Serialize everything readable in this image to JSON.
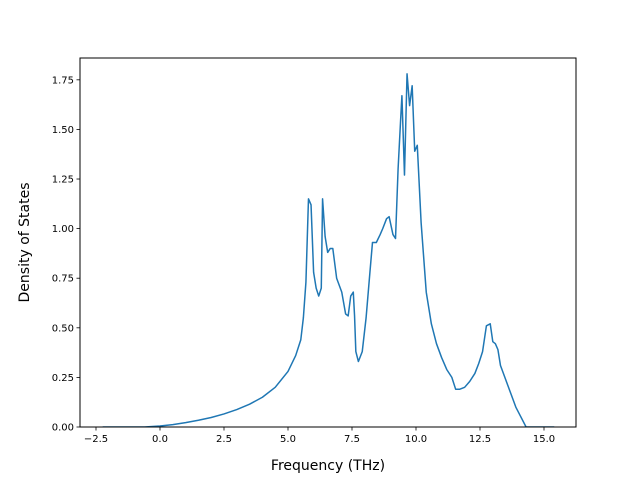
{
  "chart_data": {
    "type": "line",
    "title": "",
    "xlabel": "Frequency (THz)",
    "ylabel": "Density of States",
    "xlim": [
      -3.125,
      16.25
    ],
    "ylim": [
      0,
      1.86
    ],
    "grid": false,
    "legend": "none",
    "x_ticks": [
      -2.5,
      0.0,
      2.5,
      5.0,
      7.5,
      10.0,
      12.5,
      15.0
    ],
    "x_tick_labels": [
      "−2.5",
      "0.0",
      "2.5",
      "5.0",
      "7.5",
      "10.0",
      "12.5",
      "15.0"
    ],
    "y_ticks": [
      0,
      0.25,
      0.5,
      0.75,
      1.0,
      1.25,
      1.5,
      1.75
    ],
    "y_tick_labels": [
      "0.00",
      "0.25",
      "0.50",
      "0.75",
      "1.00",
      "1.25",
      "1.50",
      "1.75"
    ],
    "series": [
      {
        "color": "#1f77b4",
        "x": [
          -2.24,
          -0.6,
          0.0,
          0.5,
          1.0,
          1.5,
          2.0,
          2.5,
          3.0,
          3.5,
          4.0,
          4.5,
          5.0,
          5.3,
          5.5,
          5.6,
          5.7,
          5.8,
          5.9,
          6.0,
          6.1,
          6.2,
          6.3,
          6.35,
          6.45,
          6.55,
          6.65,
          6.75,
          6.9,
          7.1,
          7.25,
          7.35,
          7.45,
          7.55,
          7.6,
          7.65,
          7.75,
          7.9,
          8.05,
          8.2,
          8.3,
          8.45,
          8.6,
          8.7,
          8.85,
          8.95,
          9.1,
          9.2,
          9.3,
          9.4,
          9.45,
          9.55,
          9.65,
          9.75,
          9.85,
          9.95,
          10.05,
          10.2,
          10.4,
          10.6,
          10.8,
          11.0,
          11.2,
          11.4,
          11.55,
          11.7,
          11.9,
          12.1,
          12.3,
          12.45,
          12.6,
          12.75,
          12.9,
          13.0,
          13.1,
          13.2,
          13.3,
          13.5,
          13.7,
          13.9,
          14.3,
          15.4
        ],
        "y": [
          0.0,
          0.0,
          0.005,
          0.012,
          0.022,
          0.034,
          0.048,
          0.066,
          0.088,
          0.115,
          0.15,
          0.2,
          0.28,
          0.36,
          0.44,
          0.55,
          0.73,
          1.15,
          1.12,
          0.78,
          0.7,
          0.66,
          0.7,
          1.15,
          0.96,
          0.88,
          0.9,
          0.9,
          0.75,
          0.68,
          0.57,
          0.56,
          0.66,
          0.68,
          0.56,
          0.38,
          0.33,
          0.38,
          0.55,
          0.78,
          0.93,
          0.93,
          0.97,
          1.0,
          1.05,
          1.06,
          0.97,
          0.95,
          1.3,
          1.55,
          1.67,
          1.27,
          1.78,
          1.62,
          1.72,
          1.39,
          1.42,
          1.03,
          0.68,
          0.52,
          0.42,
          0.35,
          0.29,
          0.25,
          0.19,
          0.19,
          0.2,
          0.23,
          0.27,
          0.32,
          0.38,
          0.51,
          0.52,
          0.43,
          0.42,
          0.39,
          0.31,
          0.24,
          0.17,
          0.1,
          0.0,
          0.0
        ]
      }
    ]
  }
}
